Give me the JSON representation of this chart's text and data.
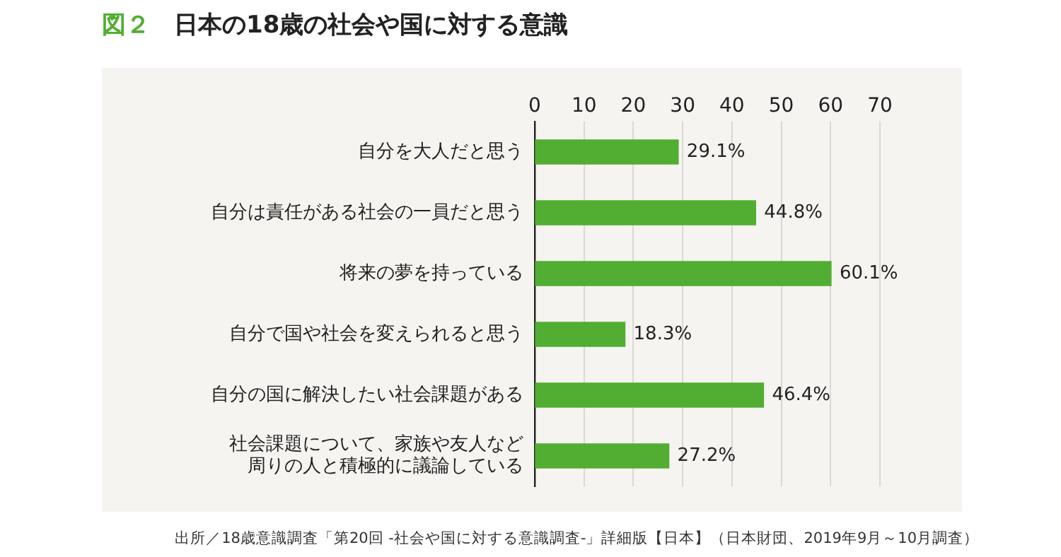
{
  "chart_data": {
    "type": "bar",
    "orientation": "horizontal",
    "title": "図２　日本の18歳の社会や国に対する意識",
    "categories": [
      "自分を大人だと思う",
      "自分は責任がある社会の一員だと思う",
      "将来の夢を持っている",
      "自分で国や社会を変えられると思う",
      "自分の国に解決したい社会課題がある",
      "社会課題について、家族や友人など周りの人と積極的に議論している"
    ],
    "values": [
      29.1,
      44.8,
      60.1,
      18.3,
      46.4,
      27.2
    ],
    "value_labels": [
      "29.1%",
      "44.8%",
      "60.1%",
      "18.3%",
      "46.4%",
      "27.2%"
    ],
    "color": "#52ae32",
    "xlim": [
      0,
      70
    ],
    "xticks": [
      0,
      10,
      20,
      30,
      40,
      50,
      60,
      70
    ],
    "grid": "x",
    "annotations": [
      "出所／18歳意識調査「第20回 -社会や国に対する意識調査-」詳細版【日本】（日本財団、2019年9月～10月調査）"
    ]
  }
}
